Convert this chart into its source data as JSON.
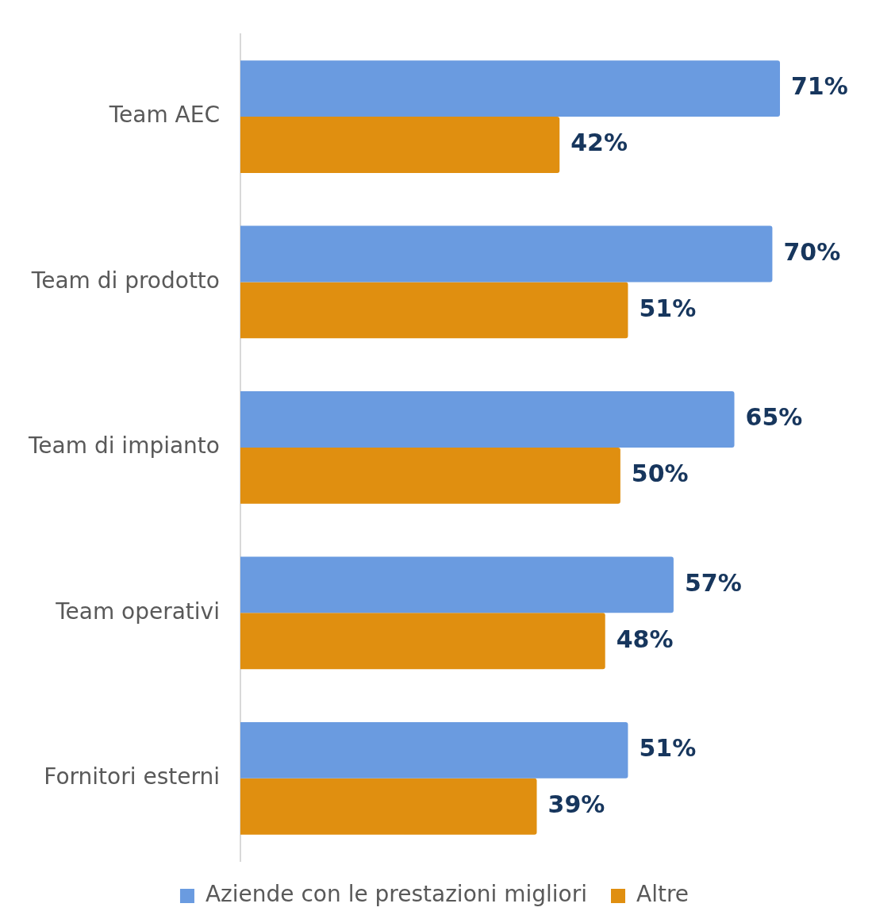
{
  "chart_data": {
    "type": "bar",
    "orientation": "horizontal",
    "categories": [
      "Team AEC",
      "Team di prodotto",
      "Team di impianto",
      "Team operativi",
      "Fornitori esterni"
    ],
    "series": [
      {
        "name": "Aziende con le prestazioni migliori",
        "color": "#6a9be0",
        "values": [
          71,
          70,
          65,
          57,
          51
        ],
        "value_labels": [
          "71%",
          "70%",
          "65%",
          "57%",
          "51%"
        ]
      },
      {
        "name": "Altre",
        "color": "#e08f10",
        "values": [
          42,
          51,
          50,
          48,
          39
        ],
        "value_labels": [
          "42%",
          "51%",
          "50%",
          "48%",
          "39%"
        ]
      }
    ],
    "legend": "bottom",
    "grid": false
  }
}
